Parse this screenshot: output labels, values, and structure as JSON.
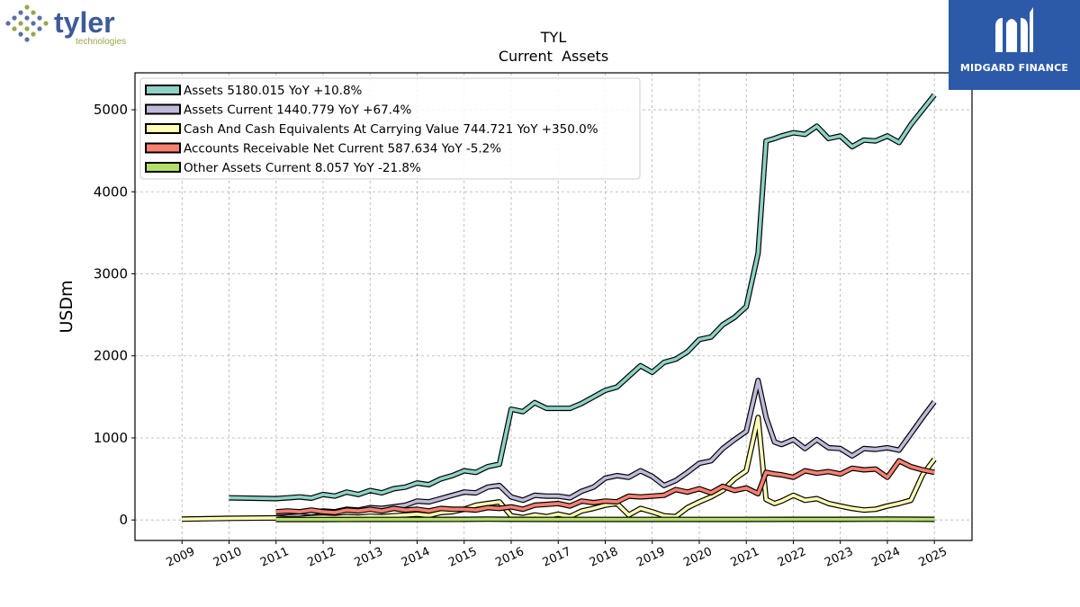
{
  "logos": {
    "left_brand": "tyler",
    "left_sub": "technologies",
    "right_brand": "MIDGARD FINANCE"
  },
  "colors": {
    "grid": "#b0b0b0",
    "outline": "#000000"
  },
  "chart_data": {
    "type": "line",
    "title": "TYL",
    "subtitle": "Current  Assets",
    "xlabel": "",
    "ylabel": "USDm",
    "xlim": [
      2008.0,
      2025.8
    ],
    "ylim": [
      -250,
      5450
    ],
    "x_ticks": [
      "2009",
      "2010",
      "2011",
      "2012",
      "2013",
      "2014",
      "2015",
      "2016",
      "2017",
      "2018",
      "2019",
      "2020",
      "2021",
      "2022",
      "2023",
      "2024",
      "2025"
    ],
    "y_ticks": [
      0,
      1000,
      2000,
      3000,
      4000,
      5000
    ],
    "grid": true,
    "legend_position": "top-left",
    "series": [
      {
        "name": "Assets",
        "label": "Assets  5180.015 YoY +10.8%",
        "color": "#8dd3c7",
        "x": [
          2010.0,
          2011.0,
          2011.25,
          2011.5,
          2011.75,
          2012.0,
          2012.25,
          2012.5,
          2012.75,
          2013.0,
          2013.25,
          2013.5,
          2013.75,
          2014.0,
          2014.25,
          2014.5,
          2014.75,
          2015.0,
          2015.25,
          2015.5,
          2015.75,
          2016.0,
          2016.25,
          2016.5,
          2016.75,
          2017.0,
          2017.25,
          2017.5,
          2017.75,
          2018.0,
          2018.25,
          2018.5,
          2018.75,
          2019.0,
          2019.25,
          2019.5,
          2019.75,
          2020.0,
          2020.25,
          2020.5,
          2020.75,
          2021.0,
          2021.25,
          2021.42,
          2021.6,
          2021.75,
          2022.0,
          2022.25,
          2022.5,
          2022.75,
          2023.0,
          2023.25,
          2023.5,
          2023.75,
          2024.0,
          2024.25,
          2024.5,
          2024.75,
          2025.0
        ],
        "y": [
          270,
          260,
          270,
          280,
          265,
          310,
          290,
          340,
          310,
          360,
          330,
          380,
          400,
          450,
          430,
          500,
          540,
          600,
          580,
          650,
          680,
          1350,
          1320,
          1430,
          1360,
          1360,
          1360,
          1420,
          1500,
          1580,
          1620,
          1750,
          1880,
          1800,
          1920,
          1960,
          2050,
          2200,
          2230,
          2380,
          2470,
          2600,
          3250,
          4620,
          4650,
          4680,
          4720,
          4700,
          4800,
          4650,
          4680,
          4550,
          4630,
          4620,
          4680,
          4600,
          4820,
          5000,
          5180
        ]
      },
      {
        "name": "Assets Current",
        "label": "Assets Current  1440.779 YoY +67.4%",
        "color": "#bebada",
        "x": [
          2011.0,
          2011.25,
          2011.5,
          2011.75,
          2012.0,
          2012.25,
          2012.5,
          2012.75,
          2013.0,
          2013.25,
          2013.5,
          2013.75,
          2014.0,
          2014.25,
          2014.5,
          2014.75,
          2015.0,
          2015.25,
          2015.5,
          2015.75,
          2016.0,
          2016.25,
          2016.5,
          2016.75,
          2017.0,
          2017.25,
          2017.5,
          2017.75,
          2018.0,
          2018.25,
          2018.5,
          2018.75,
          2019.0,
          2019.25,
          2019.5,
          2019.75,
          2020.0,
          2020.25,
          2020.5,
          2020.75,
          2021.0,
          2021.25,
          2021.42,
          2021.6,
          2021.75,
          2022.0,
          2022.25,
          2022.5,
          2022.75,
          2023.0,
          2023.25,
          2023.5,
          2023.75,
          2024.0,
          2024.25,
          2024.5,
          2024.75,
          2025.0
        ],
        "y": [
          80,
          90,
          100,
          85,
          110,
          100,
          130,
          120,
          150,
          140,
          160,
          180,
          230,
          220,
          260,
          300,
          340,
          330,
          400,
          420,
          280,
          240,
          300,
          290,
          290,
          270,
          350,
          400,
          510,
          540,
          520,
          600,
          530,
          420,
          480,
          580,
          690,
          720,
          870,
          980,
          1080,
          1700,
          1250,
          950,
          920,
          980,
          870,
          980,
          880,
          870,
          780,
          870,
          860,
          880,
          850,
          1050,
          1250,
          1440
        ]
      },
      {
        "name": "Cash And Cash Equivalents At Carrying Value",
        "label": "Cash And Cash Equivalents At Carrying Value  744.721 YoY +350.0%",
        "color": "#ffffb3",
        "x": [
          2009.0,
          2010.0,
          2011.0,
          2011.25,
          2011.5,
          2011.75,
          2012.0,
          2012.25,
          2012.5,
          2012.75,
          2013.0,
          2013.25,
          2013.5,
          2013.75,
          2014.0,
          2014.25,
          2014.5,
          2014.75,
          2015.0,
          2015.25,
          2015.5,
          2015.75,
          2016.0,
          2016.25,
          2016.5,
          2016.75,
          2017.0,
          2017.25,
          2017.5,
          2017.75,
          2018.0,
          2018.25,
          2018.5,
          2018.75,
          2019.0,
          2019.25,
          2019.5,
          2019.75,
          2020.0,
          2020.25,
          2020.5,
          2020.75,
          2021.0,
          2021.25,
          2021.42,
          2021.6,
          2021.75,
          2022.0,
          2022.25,
          2022.5,
          2022.75,
          2023.0,
          2023.25,
          2023.5,
          2023.75,
          2024.0,
          2024.25,
          2024.5,
          2024.75,
          2025.0
        ],
        "y": [
          10,
          20,
          25,
          15,
          20,
          30,
          35,
          30,
          40,
          35,
          45,
          40,
          50,
          60,
          70,
          55,
          90,
          100,
          130,
          180,
          200,
          220,
          50,
          30,
          60,
          40,
          70,
          40,
          110,
          140,
          180,
          200,
          60,
          140,
          100,
          50,
          40,
          150,
          220,
          280,
          360,
          500,
          600,
          1250,
          250,
          200,
          230,
          300,
          240,
          260,
          200,
          170,
          140,
          120,
          130,
          170,
          200,
          240,
          550,
          740
        ]
      },
      {
        "name": "Accounts Receivable Net Current",
        "label": "Accounts Receivable Net Current  587.634 YoY -5.2%",
        "color": "#fb8072",
        "x": [
          2011.0,
          2011.25,
          2011.5,
          2011.75,
          2012.0,
          2012.25,
          2012.5,
          2012.75,
          2013.0,
          2013.25,
          2013.5,
          2013.75,
          2014.0,
          2014.25,
          2014.5,
          2014.75,
          2015.0,
          2015.25,
          2015.5,
          2015.75,
          2016.0,
          2016.25,
          2016.5,
          2016.75,
          2017.0,
          2017.25,
          2017.5,
          2017.75,
          2018.0,
          2018.25,
          2018.5,
          2018.75,
          2019.0,
          2019.25,
          2019.5,
          2019.75,
          2020.0,
          2020.25,
          2020.5,
          2020.75,
          2021.0,
          2021.25,
          2021.42,
          2021.6,
          2021.75,
          2022.0,
          2022.25,
          2022.5,
          2022.75,
          2023.0,
          2023.25,
          2023.5,
          2023.75,
          2024.0,
          2024.25,
          2024.5,
          2024.75,
          2025.0
        ],
        "y": [
          100,
          110,
          100,
          120,
          100,
          90,
          120,
          110,
          130,
          110,
          140,
          120,
          130,
          110,
          140,
          130,
          130,
          120,
          150,
          140,
          160,
          130,
          180,
          190,
          200,
          170,
          230,
          210,
          230,
          220,
          290,
          280,
          290,
          300,
          370,
          340,
          380,
          330,
          410,
          360,
          390,
          320,
          580,
          560,
          550,
          520,
          600,
          570,
          590,
          560,
          630,
          610,
          620,
          520,
          720,
          650,
          610,
          580
        ]
      },
      {
        "name": "Other Assets Current",
        "label": "Other Assets Current  8.057 YoY -21.8%",
        "color": "#b3de69",
        "x": [
          2011.0,
          2012.0,
          2013.0,
          2014.0,
          2015.0,
          2015.5,
          2016.0,
          2017.0,
          2018.0,
          2019.0,
          2020.0,
          2021.0,
          2022.0,
          2023.0,
          2024.0,
          2025.0
        ],
        "y": [
          5,
          5,
          6,
          6,
          8,
          10,
          8,
          6,
          6,
          6,
          6,
          6,
          8,
          8,
          10,
          8
        ]
      }
    ]
  }
}
